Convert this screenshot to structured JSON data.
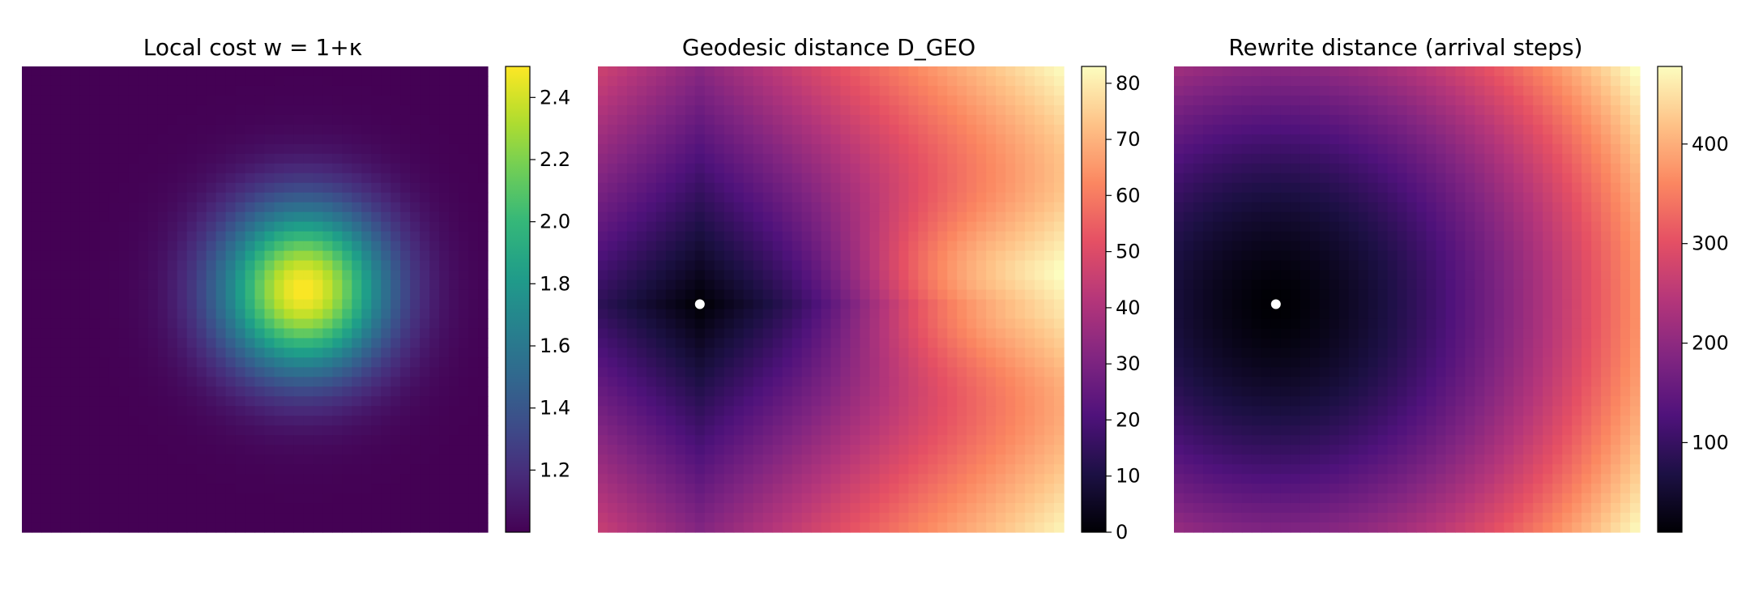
{
  "figure": {
    "panels": [
      {
        "title": "Local cost w = 1+κ"
      },
      {
        "title": "Geodesic distance D_GEO"
      },
      {
        "title": "Rewrite distance (arrival steps)"
      }
    ]
  },
  "chart_data": [
    {
      "type": "heatmap",
      "title": "Local cost w = 1+κ",
      "xlabel": "",
      "ylabel": "",
      "axes_visible": false,
      "grid": false,
      "colormap": "viridis",
      "grid_size": [
        48,
        48
      ],
      "field": "gaussian bump, peak ≈2.5 at column 29 / row 23 of 48, baseline ≈1.0",
      "peak_value": 2.5,
      "baseline_value": 1.0,
      "colorbar": {
        "vmin": 1.0,
        "vmax": 2.5,
        "ticks": [
          1.2,
          1.4,
          1.6,
          1.8,
          2.0,
          2.2,
          2.4
        ]
      }
    },
    {
      "type": "heatmap",
      "title": "Geodesic distance D_GEO",
      "xlabel": "",
      "ylabel": "",
      "axes_visible": false,
      "grid": false,
      "colormap": "magma",
      "grid_size": [
        48,
        48
      ],
      "source_marker": {
        "col": 10,
        "row": 24,
        "color": "#ffffff"
      },
      "max_value": 83,
      "colorbar": {
        "vmin": 0,
        "vmax": 83,
        "ticks": [
          0,
          10,
          20,
          30,
          40,
          50,
          60,
          70,
          80
        ]
      }
    },
    {
      "type": "heatmap",
      "title": "Rewrite distance (arrival steps)",
      "xlabel": "",
      "ylabel": "",
      "axes_visible": false,
      "grid": false,
      "colormap": "magma",
      "grid_size": [
        48,
        48
      ],
      "source_marker": {
        "col": 10,
        "row": 24,
        "color": "#ffffff"
      },
      "max_value": 478,
      "colorbar": {
        "vmin": 10,
        "vmax": 478,
        "ticks": [
          100,
          200,
          300,
          400
        ]
      }
    }
  ]
}
